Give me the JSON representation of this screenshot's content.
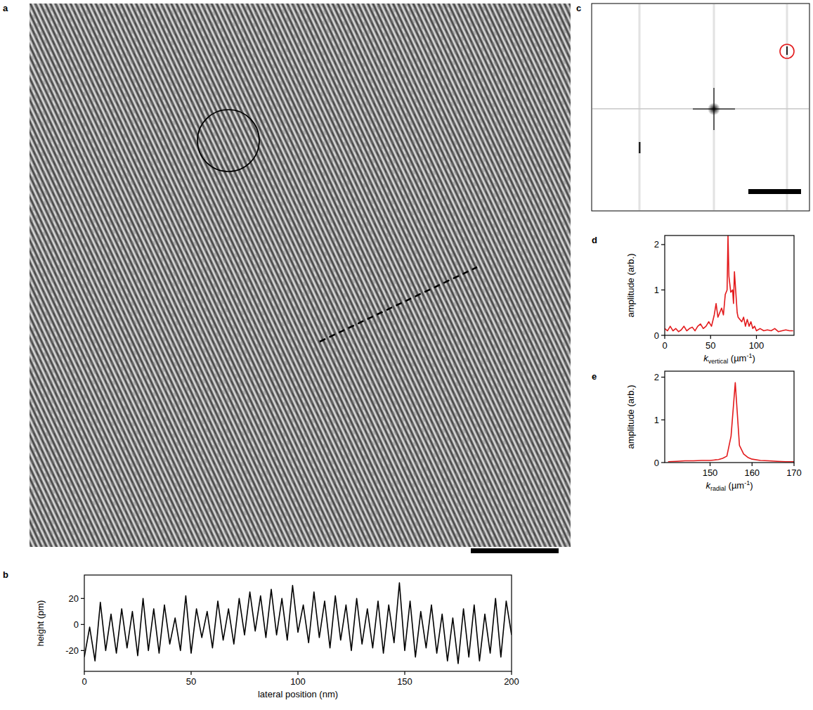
{
  "images": [
    {
      "letter": "a"
    },
    {
      "letter": "c"
    }
  ],
  "chart_data": [
    {
      "letter": "b",
      "type": "line",
      "color": "#000000",
      "x_label": [
        "lateral position (nm)"
      ],
      "y_label": "height (pm)",
      "xlim": [
        0,
        200
      ],
      "xticks": [
        0,
        50,
        100,
        150,
        200
      ],
      "ylim": [
        -36,
        38
      ],
      "yticks": [
        -20,
        0,
        20
      ],
      "x": [
        0,
        2.5,
        5,
        7.5,
        10,
        12.5,
        15,
        17.5,
        20,
        22.5,
        25,
        27.5,
        30,
        32.5,
        35,
        37.5,
        40,
        42.5,
        45,
        47.5,
        50,
        52.5,
        55,
        57.5,
        60,
        62.5,
        65,
        67.5,
        70,
        72.5,
        75,
        77.5,
        80,
        82.5,
        85,
        87.5,
        90,
        92.5,
        95,
        97.5,
        100,
        102.5,
        105,
        107.5,
        110,
        112.5,
        115,
        117.5,
        120,
        122.5,
        125,
        127.5,
        130,
        132.5,
        135,
        137.5,
        140,
        142.5,
        145,
        147.5,
        150,
        152.5,
        155,
        157.5,
        160,
        162.5,
        165,
        167.5,
        170,
        172.5,
        175,
        177.5,
        180,
        182.5,
        185,
        187.5,
        190,
        192.5,
        195,
        197.5,
        200
      ],
      "values": [
        -25,
        -2,
        -28,
        17,
        -20,
        8,
        -22,
        12,
        -18,
        10,
        -24,
        20,
        -20,
        12,
        -22,
        15,
        -15,
        5,
        -20,
        22,
        -22,
        12,
        -10,
        10,
        -18,
        18,
        -12,
        12,
        -15,
        20,
        -8,
        25,
        -5,
        22,
        -10,
        27,
        -8,
        20,
        -12,
        30,
        -6,
        15,
        -14,
        25,
        -10,
        18,
        -18,
        22,
        -12,
        15,
        -20,
        20,
        -15,
        12,
        -18,
        18,
        -22,
        15,
        -14,
        32,
        -20,
        18,
        -25,
        10,
        -18,
        15,
        -22,
        8,
        -28,
        5,
        -30,
        12,
        -25,
        15,
        -28,
        8,
        -22,
        20,
        -25,
        18,
        -8
      ]
    },
    {
      "letter": "d",
      "type": "line",
      "color": "#e31a1c",
      "x_label": [
        "k",
        "vertical",
        " (µm",
        "-1",
        ")"
      ],
      "y_label": "amplitude (arb.)",
      "xlim": [
        0,
        141
      ],
      "xticks": [
        0,
        50,
        100
      ],
      "ylim": [
        0,
        2.2
      ],
      "yticks": [
        0,
        1,
        2
      ],
      "x": [
        0,
        3,
        6,
        9,
        12,
        15,
        18,
        21,
        24,
        27,
        30,
        33,
        36,
        39,
        42,
        45,
        48,
        51,
        54,
        56,
        58,
        60,
        62,
        64,
        66,
        68,
        69,
        70,
        72,
        74,
        75,
        76,
        78,
        79,
        80,
        82,
        84,
        86,
        88,
        90,
        92,
        94,
        96,
        98,
        100,
        104,
        108,
        112,
        116,
        120,
        124,
        128,
        132,
        136,
        140
      ],
      "values": [
        0.15,
        0.1,
        0.2,
        0.1,
        0.15,
        0.08,
        0.12,
        0.2,
        0.1,
        0.15,
        0.18,
        0.1,
        0.2,
        0.25,
        0.15,
        0.2,
        0.3,
        0.2,
        0.45,
        0.7,
        0.4,
        0.5,
        0.6,
        0.45,
        0.9,
        1.0,
        2.2,
        1.3,
        0.95,
        1.0,
        0.7,
        1.4,
        0.8,
        0.5,
        0.4,
        0.35,
        0.3,
        0.4,
        0.2,
        0.35,
        0.2,
        0.3,
        0.15,
        0.2,
        0.1,
        0.15,
        0.1,
        0.12,
        0.1,
        0.15,
        0.08,
        0.1,
        0.12,
        0.1,
        0.1
      ]
    },
    {
      "letter": "e",
      "type": "line",
      "color": "#e31a1c",
      "x_label": [
        "k",
        "radial",
        " (µm",
        "-1",
        ")"
      ],
      "y_label": "amplitude (arb.)",
      "xlim": [
        139.2,
        170
      ],
      "xticks": [
        150,
        160,
        170
      ],
      "ylim": [
        0,
        2.14
      ],
      "yticks": [
        0,
        1,
        2
      ],
      "x": [
        140,
        142,
        144,
        146,
        148,
        150,
        152,
        153,
        154,
        155,
        156,
        157,
        158,
        159,
        160,
        162,
        164,
        166,
        168,
        170
      ],
      "values": [
        0.02,
        0.03,
        0.04,
        0.04,
        0.05,
        0.05,
        0.07,
        0.1,
        0.15,
        0.62,
        1.87,
        0.4,
        0.2,
        0.12,
        0.08,
        0.05,
        0.04,
        0.03,
        0.02,
        0.02
      ]
    }
  ]
}
